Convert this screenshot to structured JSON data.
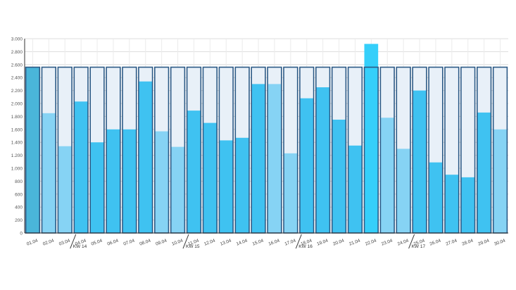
{
  "chart_data": {
    "type": "bar",
    "title": "",
    "xlabel": "",
    "ylabel": "",
    "ylim": [
      0,
      3000
    ],
    "yticks": [
      0,
      200,
      400,
      600,
      800,
      1000,
      1200,
      1400,
      1600,
      1800,
      2000,
      2200,
      2400,
      2600,
      2800,
      3000
    ],
    "ytick_labels": [
      "0",
      "200",
      "400",
      "600",
      "800",
      "1.000",
      "1.200",
      "1.400",
      "1.600",
      "1.800",
      "2.000",
      "2.200",
      "2.400",
      "2.600",
      "2.800",
      "3.000"
    ],
    "grid": true,
    "categories": [
      "01.04",
      "02.04",
      "03.04",
      "04.04",
      "05.04",
      "06.04",
      "07.04",
      "08.04",
      "09.04",
      "10.04",
      "11.04",
      "12.04",
      "13.04",
      "14.04",
      "15.04",
      "16.04",
      "17.04",
      "18.04",
      "19.04",
      "20.04",
      "21.04",
      "22.04",
      "23.04",
      "24.04",
      "25.04",
      "26.04",
      "27.04",
      "28.04",
      "29.04",
      "30.04"
    ],
    "capacity": 2560,
    "values": [
      2560,
      1850,
      1340,
      2030,
      1400,
      1600,
      1600,
      2340,
      1570,
      1330,
      1890,
      1700,
      1430,
      1470,
      2300,
      2300,
      1230,
      2080,
      2250,
      1750,
      1350,
      2920,
      1780,
      1300,
      2200,
      1090,
      900,
      860,
      1860,
      1600
    ],
    "bar_style": [
      "selected",
      "light",
      "light",
      "normal",
      "normal",
      "normal",
      "normal",
      "normal",
      "light",
      "light",
      "normal",
      "normal",
      "normal",
      "normal",
      "normal",
      "light",
      "light",
      "normal",
      "normal",
      "normal",
      "normal",
      "highlight",
      "light",
      "light",
      "normal",
      "normal",
      "normal",
      "normal",
      "normal",
      "light"
    ],
    "week_markers": [
      {
        "after_category": "03.04",
        "label": "KW 14"
      },
      {
        "after_category": "10.04",
        "label": "KW 15"
      },
      {
        "after_category": "17.04",
        "label": "KW 16"
      },
      {
        "after_category": "24.04",
        "label": "KW 17"
      }
    ],
    "colors": {
      "normal": "#3fc2f1",
      "light": "#86d3f4",
      "highlight": "#35cffa",
      "selected": "#4ab5d9",
      "capacity_fill": "#e8f0f8",
      "capacity_border": "#2c5a86",
      "grid": "#dcdcdc"
    }
  }
}
